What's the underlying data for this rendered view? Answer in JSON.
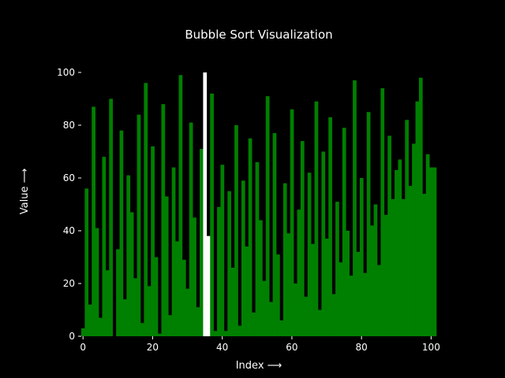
{
  "chart_data": {
    "type": "bar",
    "title": "Bubble Sort Visualization",
    "xlabel": "Index ⟶",
    "ylabel": "Value ⟶",
    "xlim": [
      -0.5,
      101.5
    ],
    "ylim": [
      0,
      100
    ],
    "xticks": [
      0,
      20,
      40,
      60,
      80,
      100
    ],
    "yticks": [
      0,
      20,
      40,
      60,
      80,
      100
    ],
    "grid": false,
    "colors": {
      "background": "#000000",
      "bar": "#008000",
      "highlight": "#ffffff",
      "text": "#ffffff"
    },
    "highlighted_indices": [
      35,
      36
    ],
    "x": [
      0,
      1,
      2,
      3,
      4,
      5,
      6,
      7,
      8,
      9,
      10,
      11,
      12,
      13,
      14,
      15,
      16,
      17,
      18,
      19,
      20,
      21,
      22,
      23,
      24,
      25,
      26,
      27,
      28,
      29,
      30,
      31,
      32,
      33,
      34,
      35,
      36,
      37,
      38,
      39,
      40,
      41,
      42,
      43,
      44,
      45,
      46,
      47,
      48,
      49,
      50,
      51,
      52,
      53,
      54,
      55,
      56,
      57,
      58,
      59,
      60,
      61,
      62,
      63,
      64,
      65,
      66,
      67,
      68,
      69,
      70,
      71,
      72,
      73,
      74,
      75,
      76,
      77,
      78,
      79,
      80,
      81,
      82,
      83,
      84,
      85,
      86,
      87,
      88,
      89,
      90,
      91,
      92,
      93,
      94,
      95,
      96,
      97,
      98,
      99,
      100,
      101
    ],
    "values": [
      3,
      56,
      12,
      87,
      41,
      7,
      68,
      25,
      90,
      0,
      33,
      78,
      14,
      61,
      47,
      22,
      84,
      5,
      96,
      19,
      72,
      30,
      1,
      88,
      53,
      8,
      64,
      36,
      99,
      29,
      18,
      81,
      45,
      11,
      71,
      100,
      38,
      92,
      2,
      49,
      65,
      2,
      55,
      26,
      80,
      4,
      59,
      34,
      75,
      9,
      66,
      44,
      21,
      91,
      13,
      77,
      31,
      6,
      58,
      39,
      86,
      20,
      48,
      74,
      15,
      62,
      35,
      89,
      10,
      70,
      37,
      83,
      16,
      51,
      28,
      79,
      40,
      23,
      97,
      32,
      60,
      24,
      85,
      42,
      50,
      27,
      94,
      46,
      76,
      52,
      63,
      67,
      52,
      82,
      57,
      73,
      89,
      98,
      54,
      69,
      64,
      64
    ]
  }
}
